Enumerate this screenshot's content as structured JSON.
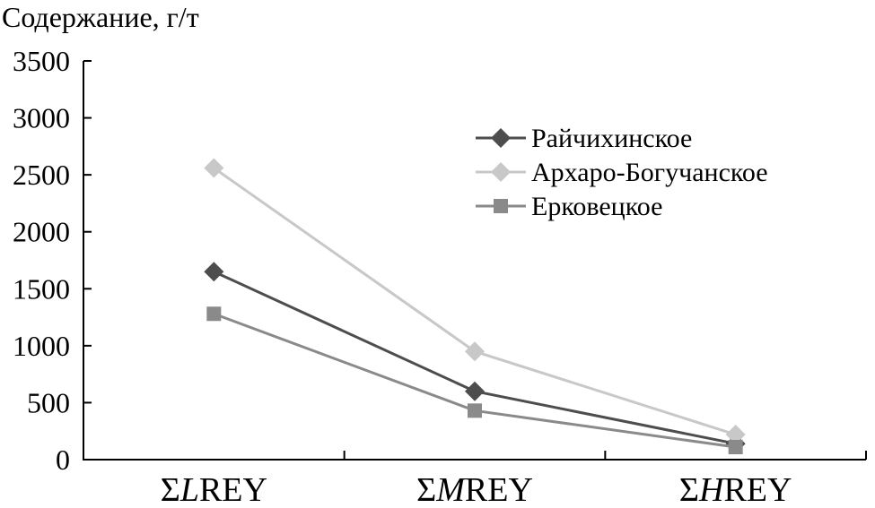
{
  "chart_data": {
    "type": "line",
    "ylabel": "Содержание, г/т",
    "xlabel": "",
    "ylim": [
      0,
      3500
    ],
    "yticks": [
      "0",
      "500",
      "1000",
      "1500",
      "2000",
      "2500",
      "3000",
      "3500"
    ],
    "categories": [
      {
        "sigma": "Σ",
        "italic": "L",
        "rest": "REY"
      },
      {
        "sigma": "Σ",
        "italic": "M",
        "rest": "REY"
      },
      {
        "sigma": "Σ",
        "italic": "H",
        "rest": "REY"
      }
    ],
    "legend_position": "top-right",
    "series": [
      {
        "name": "Райчихинское",
        "marker": "diamond",
        "color": "#4d4d4d",
        "values": [
          1650,
          600,
          140
        ]
      },
      {
        "name": "Архаро-Богучанское",
        "marker": "diamond",
        "color": "#c8c8c8",
        "values": [
          2560,
          950,
          220
        ]
      },
      {
        "name": "Ерковецкое",
        "marker": "square",
        "color": "#8a8a8a",
        "values": [
          1280,
          430,
          110
        ]
      }
    ]
  }
}
